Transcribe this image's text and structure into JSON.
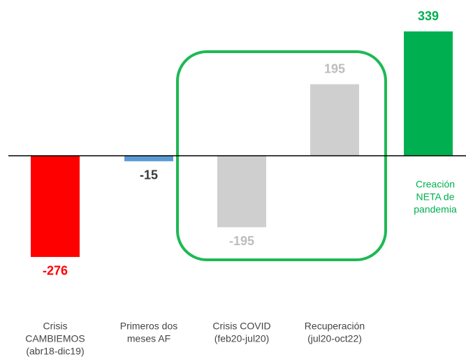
{
  "chart_data": {
    "type": "bar",
    "categories": [
      [
        "Crisis",
        "CAMBIEMOS",
        "(abr18-dic19)"
      ],
      [
        "Primeros dos",
        "meses AF"
      ],
      [
        "Crisis COVID",
        "(feb20-jul20)"
      ],
      [
        "Recuperación",
        "(jul20-oct22)"
      ],
      [
        "Creación",
        "NETA de",
        "pandemia"
      ]
    ],
    "values": [
      -276,
      -15,
      -195,
      195,
      339
    ],
    "colors": [
      "#ff0000",
      "#5b9bd5",
      "#d0cfcf",
      "#d0cfcf",
      "#00b050"
    ],
    "label_colors": [
      "#ff0000",
      "#3a3a3a",
      "#bdbdbd",
      "#bdbdbd",
      "#00b050"
    ],
    "category_colors": [
      "#444444",
      "#444444",
      "#444444",
      "#444444",
      "#00b050"
    ]
  }
}
